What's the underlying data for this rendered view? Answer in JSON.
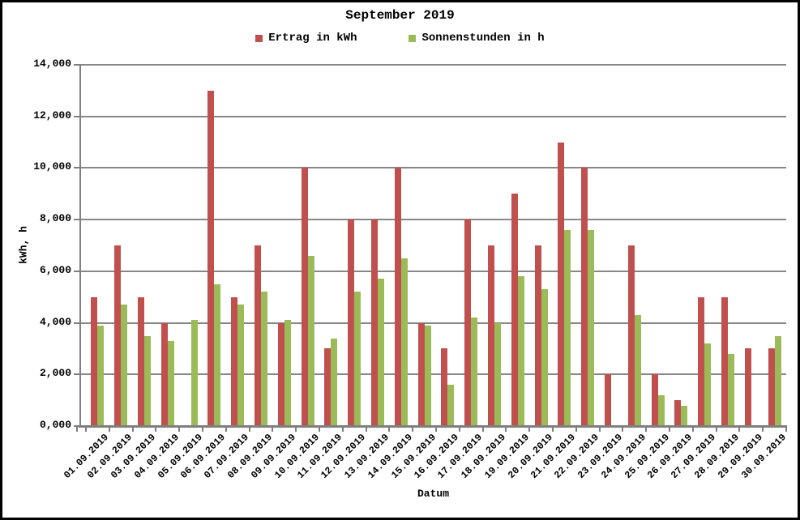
{
  "window": {
    "background": "#FFFFFF",
    "border_color": "#000000",
    "gridline_color": "#878787",
    "axis_color": "#7F7F7F"
  },
  "chart_data": {
    "type": "bar",
    "title": "September 2019",
    "xlabel": "Datum",
    "ylabel": "kWh, h",
    "ylim": [
      0,
      14
    ],
    "ytick_interval": 2,
    "ytick_labels": [
      "0,000",
      "2,000",
      "4,000",
      "6,000",
      "8,000",
      "10,000",
      "12,000",
      "14,000"
    ],
    "grid": true,
    "legend_position": "top-center",
    "categories": [
      "01.09.2019",
      "02.09.2019",
      "03.09.2019",
      "04.09.2019",
      "05.09.2019",
      "06.09.2019",
      "07.09.2019",
      "08.09.2019",
      "09.09.2019",
      "10.09.2019",
      "11.09.2019",
      "12.09.2019",
      "13.09.2019",
      "14.09.2019",
      "15.09.2019",
      "16.09.2019",
      "17.09.2019",
      "18.09.2019",
      "19.09.2019",
      "20.09.2019",
      "21.09.2019",
      "22.09.2019",
      "23.09.2019",
      "24.09.2019",
      "25.09.2019",
      "26.09.2019",
      "27.09.2019",
      "28.09.2019",
      "29.09.2019",
      "30.09.2019"
    ],
    "series": [
      {
        "name": "Ertrag in kWh",
        "color": "#C0504D",
        "values": [
          5,
          7,
          5,
          4,
          0,
          13,
          5,
          7,
          4,
          10,
          3,
          8,
          8,
          10,
          4,
          3,
          8,
          7,
          9,
          7,
          11,
          10,
          2,
          7,
          2,
          1,
          5,
          5,
          3,
          3
        ]
      },
      {
        "name": "Sonnenstunden in h",
        "color": "#9BBB59",
        "values": [
          3.9,
          4.7,
          3.5,
          3.3,
          4.1,
          5.5,
          4.7,
          5.2,
          4.1,
          6.6,
          3.4,
          5.2,
          5.7,
          6.5,
          3.9,
          1.6,
          4.2,
          4.0,
          5.8,
          5.3,
          7.6,
          7.6,
          0,
          4.3,
          1.2,
          0.8,
          3.2,
          2.8,
          0,
          3.5
        ]
      }
    ]
  }
}
